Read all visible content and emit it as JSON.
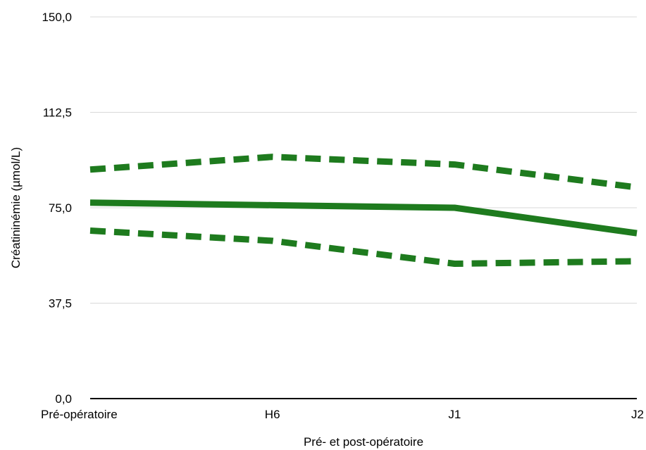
{
  "chart_data": {
    "type": "line",
    "title": "",
    "xlabel": "Pré- et post-opératoire",
    "ylabel": "Créatininémie (µmol/L)",
    "categories": [
      "Pré-opératoire",
      "H6",
      "J1",
      "J2"
    ],
    "ylim": [
      0,
      150
    ],
    "yticks": [
      "0,0",
      "37,5",
      "75,0",
      "112,5",
      "150,0"
    ],
    "ytick_values": [
      0,
      37.5,
      75,
      112.5,
      150
    ],
    "grid": true,
    "legend": "none",
    "series": [
      {
        "values": [
          90,
          95,
          92,
          83
        ],
        "style": "dashed",
        "color": "#1e7b1e"
      },
      {
        "values": [
          77,
          76,
          75,
          65
        ],
        "style": "solid",
        "color": "#1e7b1e"
      },
      {
        "values": [
          66,
          62,
          53,
          54
        ],
        "style": "dashed",
        "color": "#1e7b1e"
      }
    ]
  }
}
